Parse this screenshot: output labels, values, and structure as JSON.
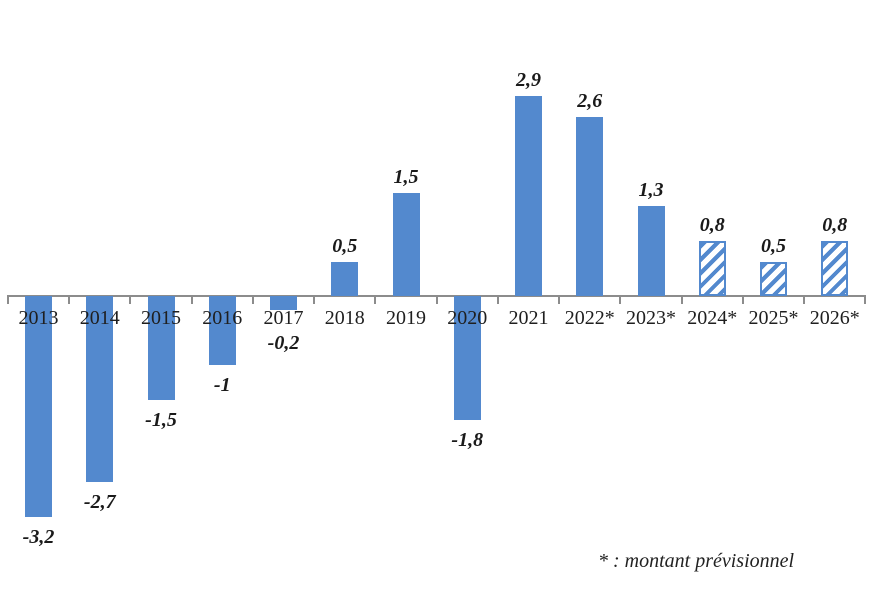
{
  "chart_data": {
    "type": "bar",
    "title": "",
    "xlabel": "",
    "ylabel": "",
    "categories": [
      "2013",
      "2014",
      "2015",
      "2016",
      "2017",
      "2018",
      "2019",
      "2020",
      "2021",
      "2022*",
      "2023*",
      "2024*",
      "2025*",
      "2026*"
    ],
    "values": [
      -3.2,
      -2.7,
      -1.5,
      -1,
      -0.2,
      0.5,
      1.5,
      -1.8,
      2.9,
      2.6,
      1.3,
      0.8,
      0.5,
      0.8
    ],
    "display_labels": [
      "-3,2",
      "-2,7",
      "-1,5",
      "-1",
      "-0,2",
      "0,5",
      "1,5",
      "-1,8",
      "2,9",
      "2,6",
      "1,3",
      "0,8",
      "0,5",
      "0,8"
    ],
    "hatched": [
      false,
      false,
      false,
      false,
      false,
      false,
      false,
      false,
      false,
      false,
      false,
      true,
      true,
      true
    ],
    "footnote": "* : montant prévisionnel",
    "ylim": [
      -3.5,
      3.2
    ],
    "grid": false,
    "legend": "none",
    "colors": {
      "bar": "#5389CE",
      "axis": "#8C8C8C",
      "label": "#1A1A1A"
    }
  }
}
